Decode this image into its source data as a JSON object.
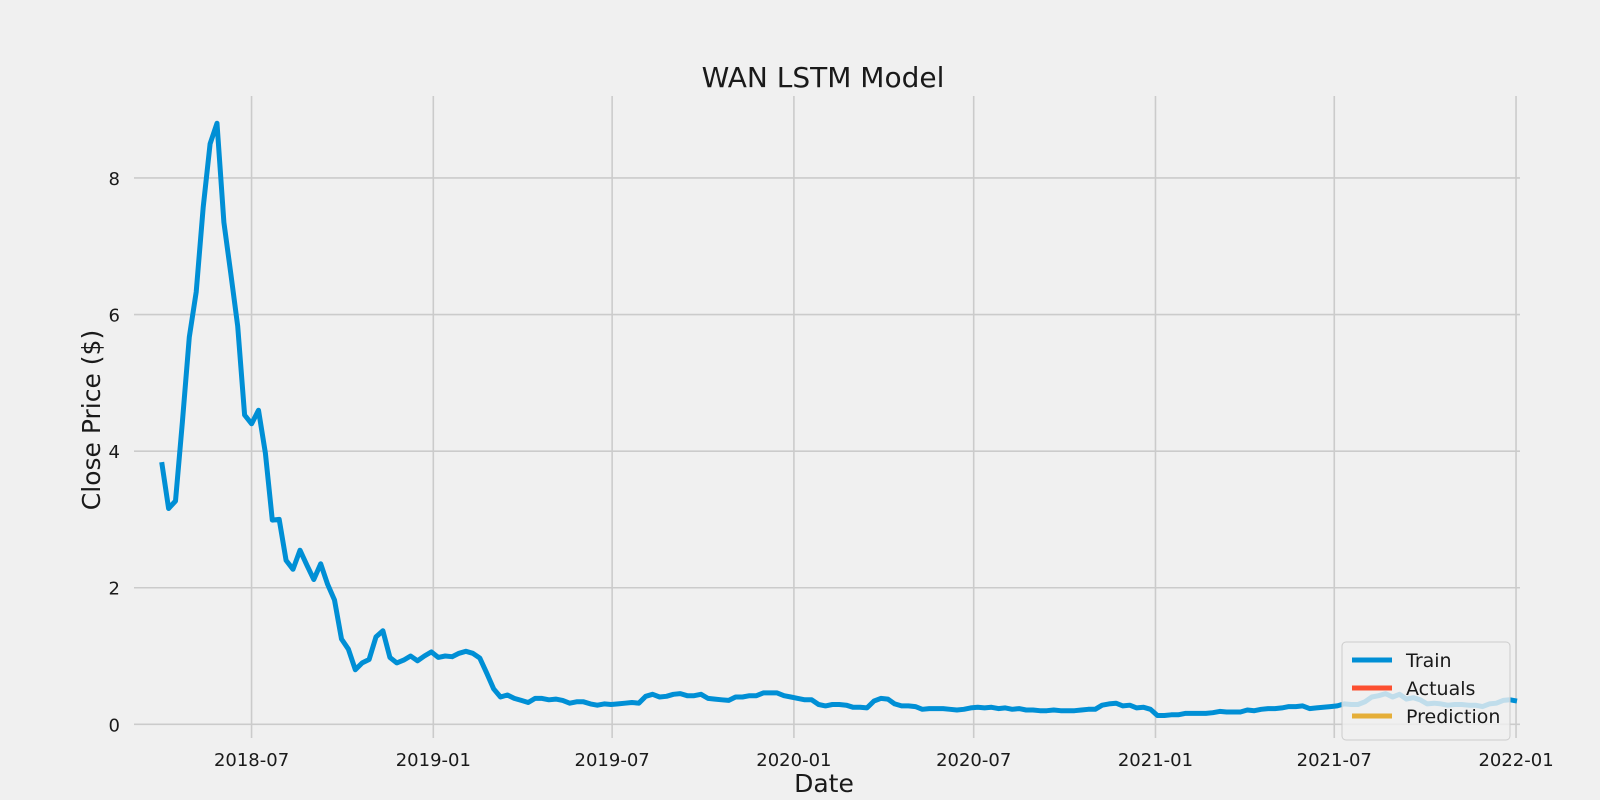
{
  "chart_data": {
    "type": "line",
    "title": "WAN LSTM Model",
    "xlabel": "Date",
    "ylabel": "Close Price ($)",
    "x_ticks": [
      "2018-07",
      "2019-01",
      "2019-07",
      "2020-01",
      "2020-07",
      "2021-01",
      "2021-07",
      "2022-01"
    ],
    "y_ticks": [
      0,
      2,
      4,
      6,
      8
    ],
    "ylim": [
      -0.2,
      9.2
    ],
    "xlim": [
      "2018-03-04",
      "2022-01-05"
    ],
    "grid": true,
    "legend_position": "bottom-right",
    "series": [
      {
        "name": "Train",
        "color": "#008fd5",
        "points": [
          [
            "2018-04-01",
            3.84
          ],
          [
            "2018-04-08",
            3.16
          ],
          [
            "2018-04-15",
            3.27
          ],
          [
            "2018-04-22",
            4.43
          ],
          [
            "2018-04-29",
            5.67
          ],
          [
            "2018-05-06",
            6.33
          ],
          [
            "2018-05-13",
            7.57
          ],
          [
            "2018-05-20",
            8.5
          ],
          [
            "2018-05-27",
            8.8
          ],
          [
            "2018-06-03",
            7.35
          ],
          [
            "2018-06-10",
            6.6
          ],
          [
            "2018-06-17",
            5.83
          ],
          [
            "2018-06-24",
            4.53
          ],
          [
            "2018-07-01",
            4.4
          ],
          [
            "2018-07-08",
            4.6
          ],
          [
            "2018-07-15",
            3.97
          ],
          [
            "2018-07-22",
            2.99
          ],
          [
            "2018-07-29",
            3.0
          ],
          [
            "2018-08-05",
            2.4
          ],
          [
            "2018-08-12",
            2.27
          ],
          [
            "2018-08-19",
            2.55
          ],
          [
            "2018-08-26",
            2.33
          ],
          [
            "2018-09-02",
            2.12
          ],
          [
            "2018-09-09",
            2.35
          ],
          [
            "2018-09-16",
            2.05
          ],
          [
            "2018-09-23",
            1.82
          ],
          [
            "2018-09-30",
            1.25
          ],
          [
            "2018-10-07",
            1.1
          ],
          [
            "2018-10-14",
            0.8
          ],
          [
            "2018-10-21",
            0.9
          ],
          [
            "2018-10-28",
            0.95
          ],
          [
            "2018-11-04",
            1.28
          ],
          [
            "2018-11-11",
            1.37
          ],
          [
            "2018-11-18",
            0.98
          ],
          [
            "2018-11-25",
            0.9
          ],
          [
            "2018-12-02",
            0.94
          ],
          [
            "2018-12-09",
            1.0
          ],
          [
            "2018-12-16",
            0.93
          ],
          [
            "2018-12-23",
            1.0
          ],
          [
            "2018-12-30",
            1.06
          ],
          [
            "2019-01-06",
            0.98
          ],
          [
            "2019-01-13",
            1.0
          ],
          [
            "2019-01-20",
            0.99
          ],
          [
            "2019-01-27",
            1.04
          ],
          [
            "2019-02-03",
            1.07
          ],
          [
            "2019-02-10",
            1.04
          ],
          [
            "2019-02-17",
            0.97
          ],
          [
            "2019-02-24",
            0.75
          ],
          [
            "2019-03-03",
            0.52
          ],
          [
            "2019-03-10",
            0.4
          ],
          [
            "2019-03-17",
            0.43
          ],
          [
            "2019-03-24",
            0.38
          ],
          [
            "2019-03-31",
            0.35
          ],
          [
            "2019-04-07",
            0.32
          ],
          [
            "2019-04-14",
            0.38
          ],
          [
            "2019-04-21",
            0.38
          ],
          [
            "2019-04-28",
            0.36
          ],
          [
            "2019-05-05",
            0.37
          ],
          [
            "2019-05-12",
            0.35
          ],
          [
            "2019-05-19",
            0.31
          ],
          [
            "2019-05-26",
            0.33
          ],
          [
            "2019-06-02",
            0.33
          ],
          [
            "2019-06-09",
            0.3
          ],
          [
            "2019-06-16",
            0.28
          ],
          [
            "2019-06-23",
            0.3
          ],
          [
            "2019-06-30",
            0.29
          ],
          [
            "2019-07-07",
            0.3
          ],
          [
            "2019-07-14",
            0.31
          ],
          [
            "2019-07-21",
            0.32
          ],
          [
            "2019-07-28",
            0.31
          ],
          [
            "2019-08-04",
            0.41
          ],
          [
            "2019-08-11",
            0.44
          ],
          [
            "2019-08-18",
            0.4
          ],
          [
            "2019-08-25",
            0.41
          ],
          [
            "2019-09-01",
            0.44
          ],
          [
            "2019-09-08",
            0.45
          ],
          [
            "2019-09-15",
            0.42
          ],
          [
            "2019-09-22",
            0.42
          ],
          [
            "2019-09-29",
            0.44
          ],
          [
            "2019-10-06",
            0.38
          ],
          [
            "2019-10-13",
            0.37
          ],
          [
            "2019-10-20",
            0.36
          ],
          [
            "2019-10-27",
            0.35
          ],
          [
            "2019-11-03",
            0.4
          ],
          [
            "2019-11-10",
            0.4
          ],
          [
            "2019-11-17",
            0.42
          ],
          [
            "2019-11-24",
            0.42
          ],
          [
            "2019-12-01",
            0.46
          ],
          [
            "2019-12-08",
            0.46
          ],
          [
            "2019-12-15",
            0.46
          ],
          [
            "2019-12-22",
            0.42
          ],
          [
            "2019-12-29",
            0.4
          ],
          [
            "2020-01-05",
            0.38
          ],
          [
            "2020-01-12",
            0.36
          ],
          [
            "2020-01-19",
            0.36
          ],
          [
            "2020-01-26",
            0.29
          ],
          [
            "2020-02-02",
            0.27
          ],
          [
            "2020-02-09",
            0.29
          ],
          [
            "2020-02-16",
            0.29
          ],
          [
            "2020-02-23",
            0.28
          ],
          [
            "2020-03-01",
            0.25
          ],
          [
            "2020-03-08",
            0.25
          ],
          [
            "2020-03-15",
            0.24
          ],
          [
            "2020-03-22",
            0.34
          ],
          [
            "2020-03-29",
            0.38
          ],
          [
            "2020-04-05",
            0.37
          ],
          [
            "2020-04-12",
            0.3
          ],
          [
            "2020-04-19",
            0.27
          ],
          [
            "2020-04-26",
            0.27
          ],
          [
            "2020-05-03",
            0.26
          ],
          [
            "2020-05-10",
            0.22
          ],
          [
            "2020-05-17",
            0.23
          ],
          [
            "2020-05-24",
            0.23
          ],
          [
            "2020-05-31",
            0.23
          ],
          [
            "2020-06-07",
            0.22
          ],
          [
            "2020-06-14",
            0.21
          ],
          [
            "2020-06-21",
            0.22
          ],
          [
            "2020-06-28",
            0.24
          ],
          [
            "2020-07-05",
            0.25
          ],
          [
            "2020-07-12",
            0.24
          ],
          [
            "2020-07-19",
            0.25
          ],
          [
            "2020-07-26",
            0.23
          ],
          [
            "2020-08-02",
            0.24
          ],
          [
            "2020-08-09",
            0.22
          ],
          [
            "2020-08-16",
            0.23
          ],
          [
            "2020-08-23",
            0.21
          ],
          [
            "2020-08-30",
            0.21
          ],
          [
            "2020-09-06",
            0.2
          ],
          [
            "2020-09-13",
            0.2
          ],
          [
            "2020-09-20",
            0.21
          ],
          [
            "2020-09-27",
            0.2
          ],
          [
            "2020-10-04",
            0.2
          ],
          [
            "2020-10-11",
            0.2
          ],
          [
            "2020-10-18",
            0.21
          ],
          [
            "2020-10-25",
            0.22
          ],
          [
            "2020-11-01",
            0.22
          ],
          [
            "2020-11-08",
            0.28
          ],
          [
            "2020-11-15",
            0.3
          ],
          [
            "2020-11-22",
            0.31
          ],
          [
            "2020-11-29",
            0.27
          ],
          [
            "2020-12-06",
            0.28
          ],
          [
            "2020-12-13",
            0.24
          ],
          [
            "2020-12-20",
            0.25
          ],
          [
            "2020-12-27",
            0.22
          ],
          [
            "2021-01-03",
            0.13
          ],
          [
            "2021-01-10",
            0.13
          ],
          [
            "2021-01-17",
            0.14
          ],
          [
            "2021-01-24",
            0.14
          ],
          [
            "2021-01-31",
            0.16
          ],
          [
            "2021-02-07",
            0.16
          ],
          [
            "2021-02-14",
            0.16
          ],
          [
            "2021-02-21",
            0.16
          ],
          [
            "2021-02-28",
            0.17
          ],
          [
            "2021-03-07",
            0.19
          ],
          [
            "2021-03-14",
            0.18
          ],
          [
            "2021-03-21",
            0.18
          ],
          [
            "2021-03-28",
            0.18
          ],
          [
            "2021-04-04",
            0.21
          ],
          [
            "2021-04-11",
            0.2
          ],
          [
            "2021-04-18",
            0.22
          ],
          [
            "2021-04-25",
            0.23
          ],
          [
            "2021-05-02",
            0.23
          ],
          [
            "2021-05-09",
            0.24
          ],
          [
            "2021-05-16",
            0.26
          ],
          [
            "2021-05-23",
            0.26
          ],
          [
            "2021-05-30",
            0.27
          ],
          [
            "2021-06-06",
            0.23
          ],
          [
            "2021-06-13",
            0.24
          ],
          [
            "2021-06-20",
            0.25
          ],
          [
            "2021-06-27",
            0.26
          ],
          [
            "2021-07-04",
            0.27
          ],
          [
            "2021-07-11",
            0.3
          ],
          [
            "2021-07-18",
            0.29
          ],
          [
            "2021-07-25",
            0.29
          ],
          [
            "2021-08-01",
            0.33
          ],
          [
            "2021-08-08",
            0.4
          ],
          [
            "2021-08-15",
            0.42
          ],
          [
            "2021-08-22",
            0.45
          ],
          [
            "2021-08-29",
            0.4
          ],
          [
            "2021-09-05",
            0.44
          ],
          [
            "2021-09-12",
            0.37
          ],
          [
            "2021-09-19",
            0.39
          ],
          [
            "2021-09-26",
            0.36
          ],
          [
            "2021-10-03",
            0.3
          ],
          [
            "2021-10-10",
            0.31
          ],
          [
            "2021-10-17",
            0.3
          ],
          [
            "2021-10-24",
            0.28
          ],
          [
            "2021-10-31",
            0.29
          ],
          [
            "2021-11-07",
            0.29
          ],
          [
            "2021-11-14",
            0.28
          ],
          [
            "2021-11-21",
            0.28
          ],
          [
            "2021-11-28",
            0.26
          ],
          [
            "2021-12-05",
            0.3
          ],
          [
            "2021-12-12",
            0.31
          ],
          [
            "2021-12-19",
            0.35
          ],
          [
            "2021-12-26",
            0.36
          ],
          [
            "2022-01-02",
            0.34
          ]
        ]
      },
      {
        "name": "Actuals",
        "color": "#fc4f30",
        "points": []
      },
      {
        "name": "Prediction",
        "color": "#e5ae38",
        "points": []
      }
    ]
  }
}
